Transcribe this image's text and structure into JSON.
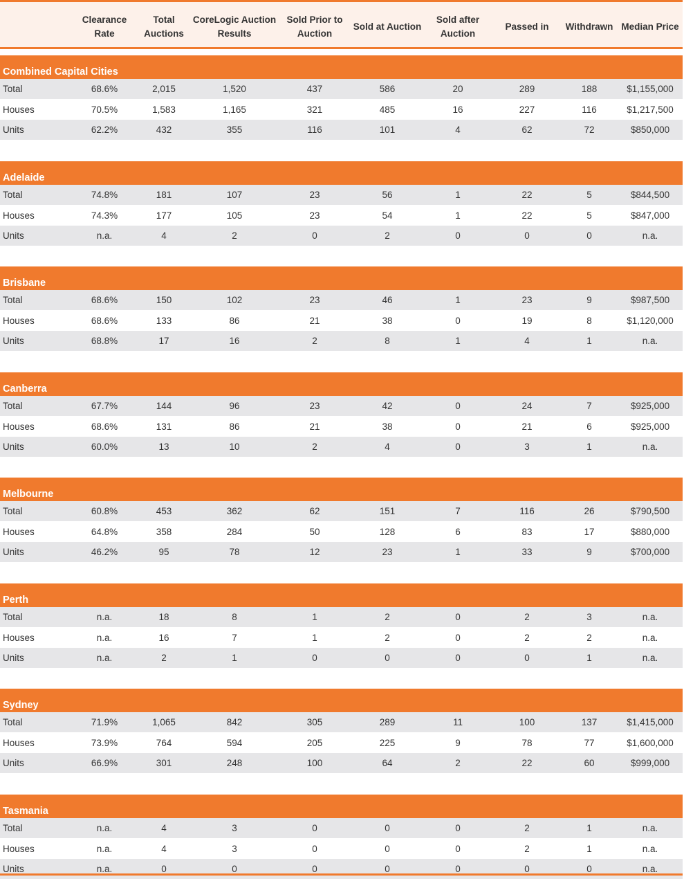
{
  "columns": [
    "",
    "Clearance\nRate",
    "Total\nAuctions",
    "CoreLogic Auction\nResults",
    "Sold Prior to\nAuction",
    "Sold at Auction",
    "Sold after\nAuction",
    "Passed in",
    "Withdrawn",
    "Median Price"
  ],
  "sections": [
    {
      "title": "Combined Capital Cities",
      "rows": [
        [
          "Total",
          "68.6%",
          "2,015",
          "1,520",
          "437",
          "586",
          "20",
          "289",
          "188",
          "$1,155,000"
        ],
        [
          "Houses",
          "70.5%",
          "1,583",
          "1,165",
          "321",
          "485",
          "16",
          "227",
          "116",
          "$1,217,500"
        ],
        [
          "Units",
          "62.2%",
          "432",
          "355",
          "116",
          "101",
          "4",
          "62",
          "72",
          "$850,000"
        ]
      ]
    },
    {
      "title": "Adelaide",
      "rows": [
        [
          "Total",
          "74.8%",
          "181",
          "107",
          "23",
          "56",
          "1",
          "22",
          "5",
          "$844,500"
        ],
        [
          "Houses",
          "74.3%",
          "177",
          "105",
          "23",
          "54",
          "1",
          "22",
          "5",
          "$847,000"
        ],
        [
          "Units",
          "n.a.",
          "4",
          "2",
          "0",
          "2",
          "0",
          "0",
          "0",
          "n.a."
        ]
      ]
    },
    {
      "title": "Brisbane",
      "rows": [
        [
          "Total",
          "68.6%",
          "150",
          "102",
          "23",
          "46",
          "1",
          "23",
          "9",
          "$987,500"
        ],
        [
          "Houses",
          "68.6%",
          "133",
          "86",
          "21",
          "38",
          "0",
          "19",
          "8",
          "$1,120,000"
        ],
        [
          "Units",
          "68.8%",
          "17",
          "16",
          "2",
          "8",
          "1",
          "4",
          "1",
          "n.a."
        ]
      ]
    },
    {
      "title": "Canberra",
      "rows": [
        [
          "Total",
          "67.7%",
          "144",
          "96",
          "23",
          "42",
          "0",
          "24",
          "7",
          "$925,000"
        ],
        [
          "Houses",
          "68.6%",
          "131",
          "86",
          "21",
          "38",
          "0",
          "21",
          "6",
          "$925,000"
        ],
        [
          "Units",
          "60.0%",
          "13",
          "10",
          "2",
          "4",
          "0",
          "3",
          "1",
          "n.a."
        ]
      ]
    },
    {
      "title": "Melbourne",
      "rows": [
        [
          "Total",
          "60.8%",
          "453",
          "362",
          "62",
          "151",
          "7",
          "116",
          "26",
          "$790,500"
        ],
        [
          "Houses",
          "64.8%",
          "358",
          "284",
          "50",
          "128",
          "6",
          "83",
          "17",
          "$880,000"
        ],
        [
          "Units",
          "46.2%",
          "95",
          "78",
          "12",
          "23",
          "1",
          "33",
          "9",
          "$700,000"
        ]
      ]
    },
    {
      "title": "Perth",
      "rows": [
        [
          "Total",
          "n.a.",
          "18",
          "8",
          "1",
          "2",
          "0",
          "2",
          "3",
          "n.a."
        ],
        [
          "Houses",
          "n.a.",
          "16",
          "7",
          "1",
          "2",
          "0",
          "2",
          "2",
          "n.a."
        ],
        [
          "Units",
          "n.a.",
          "2",
          "1",
          "0",
          "0",
          "0",
          "0",
          "1",
          "n.a."
        ]
      ]
    },
    {
      "title": "Sydney",
      "rows": [
        [
          "Total",
          "71.9%",
          "1,065",
          "842",
          "305",
          "289",
          "11",
          "100",
          "137",
          "$1,415,000"
        ],
        [
          "Houses",
          "73.9%",
          "764",
          "594",
          "205",
          "225",
          "9",
          "78",
          "77",
          "$1,600,000"
        ],
        [
          "Units",
          "66.9%",
          "301",
          "248",
          "100",
          "64",
          "2",
          "22",
          "60",
          "$999,000"
        ]
      ]
    },
    {
      "title": "Tasmania",
      "rows": [
        [
          "Total",
          "n.a.",
          "4",
          "3",
          "0",
          "0",
          "0",
          "2",
          "1",
          "n.a."
        ],
        [
          "Houses",
          "n.a.",
          "4",
          "3",
          "0",
          "0",
          "0",
          "2",
          "1",
          "n.a."
        ],
        [
          "Units",
          "n.a.",
          "0",
          "0",
          "0",
          "0",
          "0",
          "0",
          "0",
          "n.a."
        ]
      ]
    }
  ],
  "colors": {
    "accent": "#f07a2d",
    "header_bg": "#fdf1ea",
    "row_shade": "#e6e6e8"
  }
}
